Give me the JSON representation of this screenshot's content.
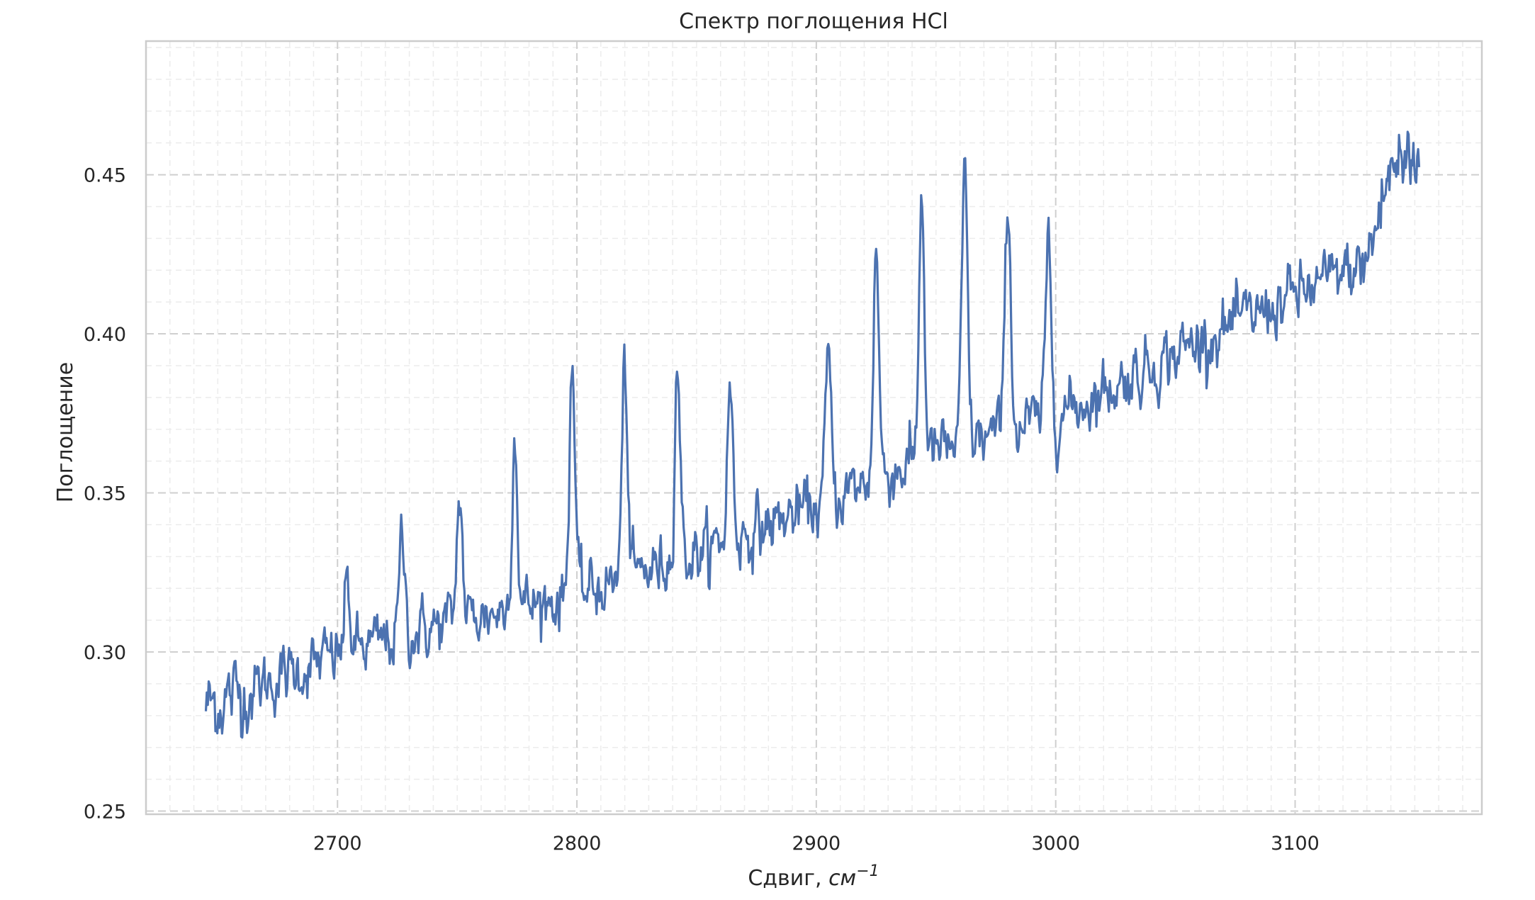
{
  "chart_data": {
    "type": "line",
    "title": "Спектр поглощения HCl",
    "xlabel": "Сдвиг, ",
    "xlabel_unit": "см",
    "xlabel_exp": "−1",
    "ylabel": "Поглощение",
    "xlim": [
      2620,
      3178
    ],
    "ylim": [
      0.249,
      0.492
    ],
    "xticks": [
      2700,
      2800,
      2900,
      3000,
      3100
    ],
    "xtick_labels": [
      "2700",
      "2800",
      "2900",
      "3000",
      "3100"
    ],
    "xminor_step": 10,
    "yticks": [
      0.25,
      0.3,
      0.35,
      0.4,
      0.45
    ],
    "ytick_labels": [
      "0.25",
      "0.30",
      "0.35",
      "0.40",
      "0.45"
    ],
    "yminor_step": 0.01,
    "grid": true,
    "line_color": "#4c72b0",
    "series": [
      {
        "x_start": 2645,
        "x_end": 3152,
        "baseline": [
          [
            2645,
            0.283
          ],
          [
            2700,
            0.299
          ],
          [
            2750,
            0.31
          ],
          [
            2800,
            0.318
          ],
          [
            2850,
            0.331
          ],
          [
            2900,
            0.346
          ],
          [
            2950,
            0.363
          ],
          [
            3000,
            0.374
          ],
          [
            3050,
            0.394
          ],
          [
            3100,
            0.412
          ],
          [
            3130,
            0.422
          ],
          [
            3140,
            0.452
          ],
          [
            3152,
            0.455
          ]
        ],
        "noise_amplitude": 0.009,
        "peaks": [
          {
            "x": 2704,
            "height": 0.321
          },
          {
            "x": 2727,
            "height": 0.336
          },
          {
            "x": 2751,
            "height": 0.35
          },
          {
            "x": 2774,
            "height": 0.369
          },
          {
            "x": 2798,
            "height": 0.393
          },
          {
            "x": 2820,
            "height": 0.39
          },
          {
            "x": 2842,
            "height": 0.392
          },
          {
            "x": 2864,
            "height": 0.384
          },
          {
            "x": 2905,
            "height": 0.393
          },
          {
            "x": 2925,
            "height": 0.427
          },
          {
            "x": 2944,
            "height": 0.443
          },
          {
            "x": 2962,
            "height": 0.451
          },
          {
            "x": 2980,
            "height": 0.445
          },
          {
            "x": 2997,
            "height": 0.43
          }
        ]
      }
    ]
  }
}
